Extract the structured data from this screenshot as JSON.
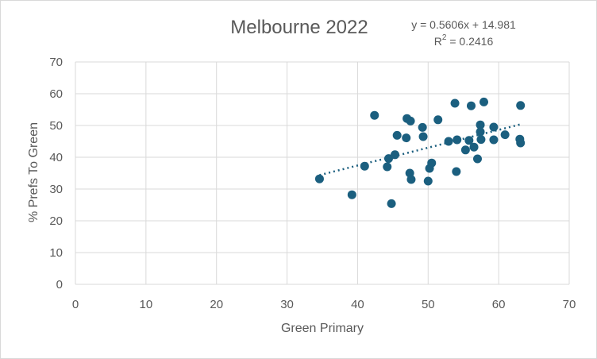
{
  "chart_data": {
    "type": "scatter",
    "title": "Melbourne 2022",
    "xlabel": "Green Primary",
    "ylabel": "% Prefs To Green",
    "xlim": [
      0,
      70
    ],
    "ylim": [
      0,
      70
    ],
    "x_ticks": [
      0,
      10,
      20,
      30,
      40,
      50,
      60,
      70
    ],
    "y_ticks": [
      0,
      10,
      20,
      30,
      40,
      50,
      60,
      70
    ],
    "grid": true,
    "trendline": {
      "type": "linear",
      "slope": 0.5606,
      "intercept": 14.981,
      "equation": "y = 0.5606x + 14.981",
      "r2_prefix": "R",
      "r2_sup": "2",
      "r2_suffix": " = 0.2416"
    },
    "series": [
      {
        "color": "#1b5f7f",
        "points": [
          [
            34.6,
            33.2
          ],
          [
            39.2,
            28.2
          ],
          [
            41.0,
            37.2
          ],
          [
            42.4,
            53.2
          ],
          [
            44.2,
            37.0
          ],
          [
            44.4,
            39.6
          ],
          [
            44.8,
            25.4
          ],
          [
            45.3,
            40.8
          ],
          [
            45.6,
            46.9
          ],
          [
            46.9,
            46.1
          ],
          [
            47.0,
            52.2
          ],
          [
            47.4,
            35.0
          ],
          [
            47.5,
            51.4
          ],
          [
            47.6,
            33.0
          ],
          [
            49.2,
            49.4
          ],
          [
            49.3,
            46.5
          ],
          [
            50.0,
            32.5
          ],
          [
            50.2,
            36.5
          ],
          [
            50.5,
            38.2
          ],
          [
            51.4,
            51.8
          ],
          [
            52.9,
            45.0
          ],
          [
            53.8,
            57.0
          ],
          [
            54.0,
            35.5
          ],
          [
            54.1,
            45.5
          ],
          [
            55.3,
            42.3
          ],
          [
            55.8,
            45.3
          ],
          [
            56.1,
            56.2
          ],
          [
            56.5,
            43.2
          ],
          [
            57.0,
            39.5
          ],
          [
            57.4,
            50.2
          ],
          [
            57.4,
            48.0
          ],
          [
            57.5,
            45.6
          ],
          [
            57.9,
            57.4
          ],
          [
            59.3,
            49.5
          ],
          [
            59.3,
            45.5
          ],
          [
            60.9,
            47.1
          ],
          [
            63.0,
            45.7
          ],
          [
            63.1,
            44.5
          ],
          [
            63.1,
            56.3
          ]
        ]
      }
    ]
  }
}
